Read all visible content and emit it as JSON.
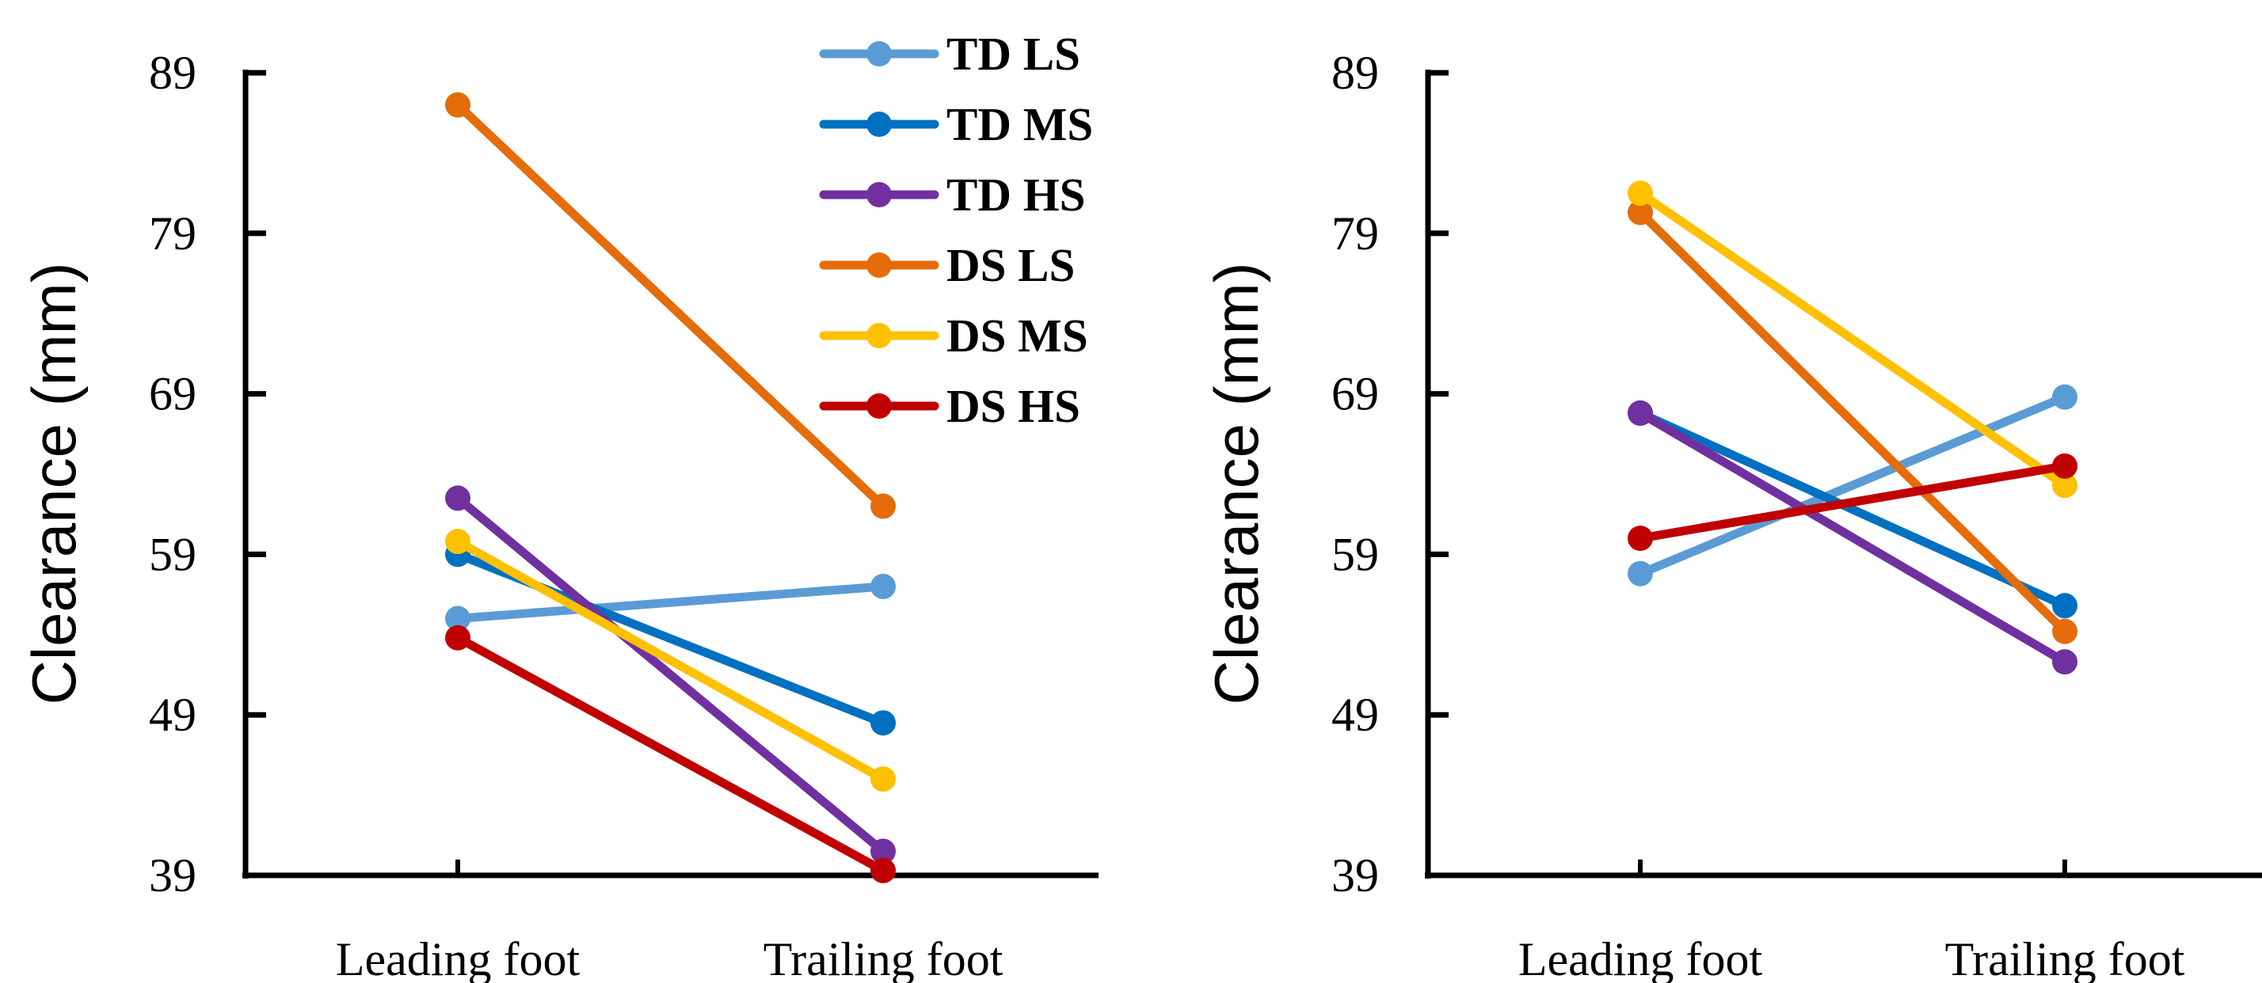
{
  "chart_data": [
    {
      "type": "line",
      "ylabel": "Clearance (mm)",
      "xlabel": "",
      "categories": [
        "Leading foot",
        "Trailing foot"
      ],
      "ylim": [
        39,
        89
      ],
      "yticks": [
        "89",
        "79",
        "69",
        "59",
        "49",
        "39"
      ],
      "grid": false,
      "legend": "top-right",
      "series": [
        {
          "name": "TD LS",
          "color": "#5B9BD5",
          "values": [
            55,
            57
          ]
        },
        {
          "name": "TD MS",
          "color": "#0070C0",
          "values": [
            59,
            48.5
          ]
        },
        {
          "name": "TD HS",
          "color": "#7030A0",
          "values": [
            62.5,
            40.5
          ]
        },
        {
          "name": "DS LS",
          "color": "#E46C0A",
          "values": [
            87,
            62
          ]
        },
        {
          "name": "DS MS",
          "color": "#FFC000",
          "values": [
            59.8,
            45
          ]
        },
        {
          "name": "DS HS",
          "color": "#C00000",
          "values": [
            53.8,
            39.3
          ]
        }
      ]
    },
    {
      "type": "line",
      "ylabel": "Clearance (mm)",
      "xlabel": "",
      "categories": [
        "Leading foot",
        "Trailing foot"
      ],
      "ylim": [
        39,
        89
      ],
      "yticks": [
        "89",
        "79",
        "69",
        "59",
        "49",
        "39"
      ],
      "grid": false,
      "legend": "none",
      "series": [
        {
          "name": "TD LS",
          "color": "#5B9BD5",
          "values": [
            57.8,
            68.8
          ]
        },
        {
          "name": "TD MS",
          "color": "#0070C0",
          "values": [
            67.8,
            55.8
          ]
        },
        {
          "name": "TD HS",
          "color": "#7030A0",
          "values": [
            67.8,
            52.3
          ]
        },
        {
          "name": "DS LS",
          "color": "#E46C0A",
          "values": [
            80.3,
            54.2
          ]
        },
        {
          "name": "DS MS",
          "color": "#FFC000",
          "values": [
            81.5,
            63.3
          ]
        },
        {
          "name": "DS HS",
          "color": "#C00000",
          "values": [
            60,
            64.5
          ]
        }
      ]
    }
  ]
}
